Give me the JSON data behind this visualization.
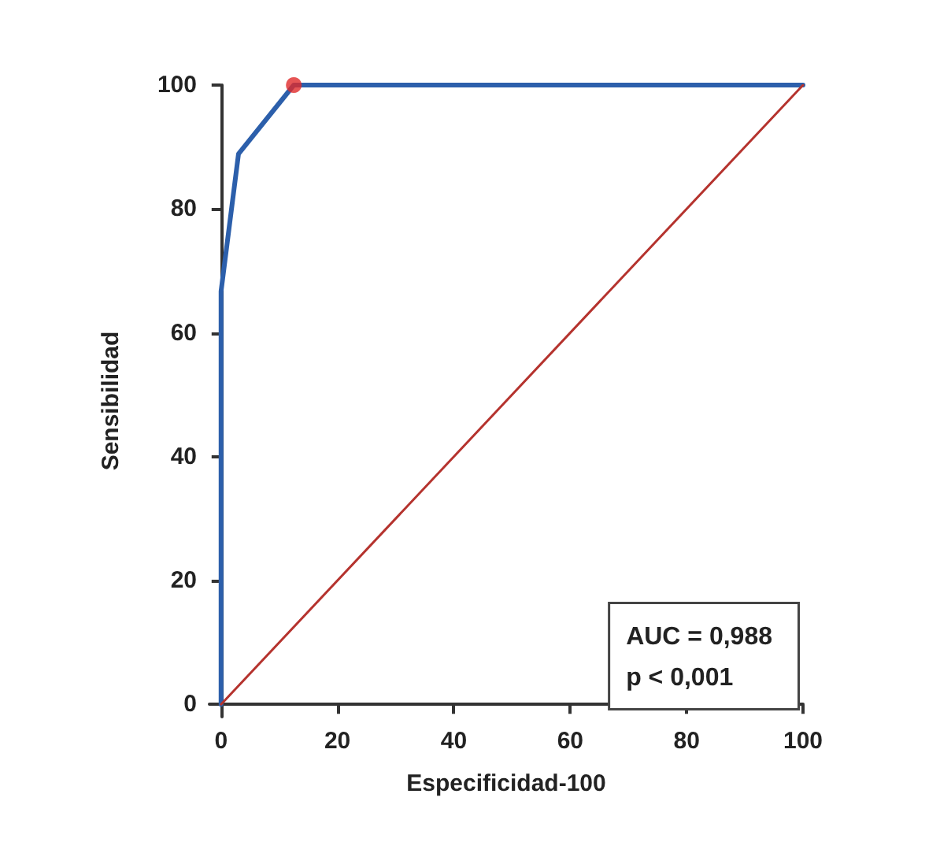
{
  "chart_data": {
    "type": "line",
    "xlabel": "Especificidad-100",
    "ylabel": "Sensibilidad",
    "xlim": [
      -2,
      100
    ],
    "ylim": [
      -2,
      100
    ],
    "xticks": [
      0,
      20,
      40,
      60,
      80,
      100
    ],
    "yticks": [
      0,
      20,
      40,
      60,
      80,
      100
    ],
    "grid": false,
    "line_style": "solid",
    "series": [
      {
        "color": "#2c5fab",
        "x": [
          0,
          0,
          3,
          12.5,
          100
        ],
        "values": [
          0,
          66.7,
          88.9,
          100,
          100
        ]
      },
      {
        "color": "#b5332e",
        "x": [
          0,
          100
        ],
        "values": [
          0,
          100
        ]
      },
      {
        "type": "scatter",
        "color": "#e02a2a",
        "x": [
          12.5
        ],
        "values": [
          100
        ]
      }
    ],
    "annotations": [
      "AUC = 0,988",
      "p < 0,001"
    ]
  }
}
